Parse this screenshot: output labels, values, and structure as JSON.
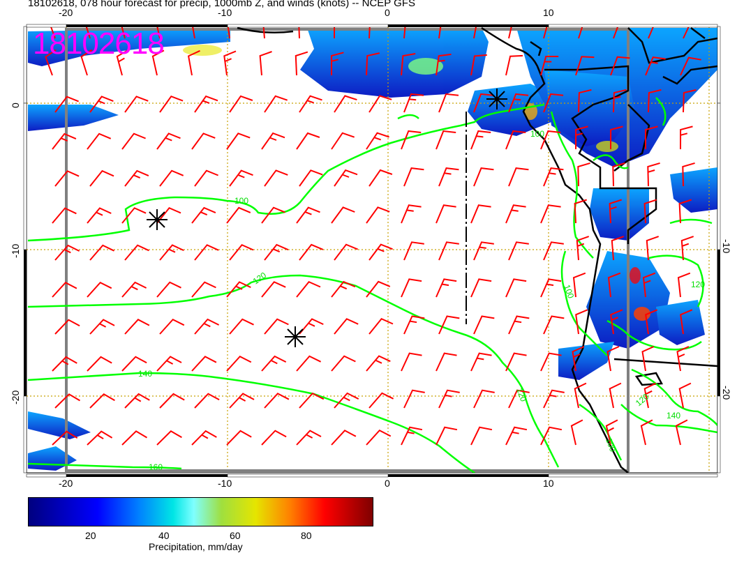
{
  "header": {
    "title": "18102618, 078 hour forecast for precip, 1000mb Z, and winds (knots) -- NCEP GFS",
    "stamp": "18102618"
  },
  "axes": {
    "top_ticks": [
      "-20",
      "-10",
      "0",
      "10"
    ],
    "bottom_ticks": [
      "-20",
      "-10",
      "0",
      "10"
    ],
    "left_ticks": [
      "0",
      "-10",
      "-20"
    ],
    "right_ticks": [
      "-10",
      "-20"
    ]
  },
  "contours": {
    "color": "#00ff00",
    "labels": [
      "100",
      "120",
      "140",
      "160",
      "100",
      "100",
      "120",
      "120",
      "140",
      "120",
      "100"
    ]
  },
  "colorbar": {
    "title": "Precipitation, mm/day",
    "ticks": [
      "20",
      "40",
      "60",
      "80"
    ]
  },
  "colors": {
    "wind_barbs": "#ff0000",
    "grid": "#c8a000",
    "coast": "#000000",
    "stamp": "#ff00ff"
  }
}
